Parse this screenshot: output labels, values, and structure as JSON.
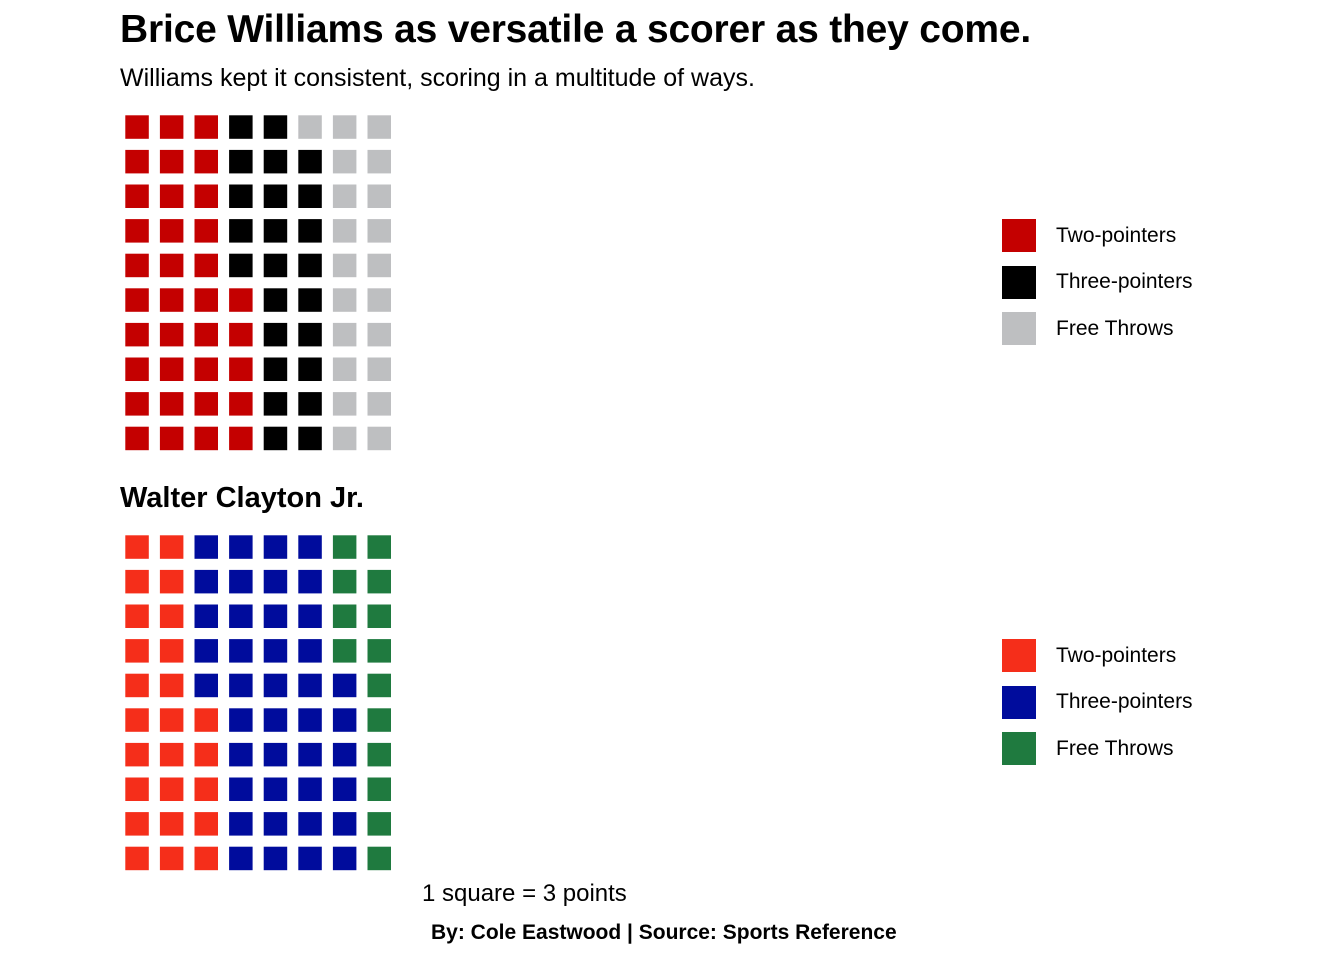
{
  "title": "Brice Williams as versatile a scorer as they come.",
  "subtitle": "Williams kept it consistent, scoring in a multitude of ways.",
  "panel2_title": "Walter Clayton Jr.",
  "caption": "1 square = 3 points",
  "credit": "By: Cole Eastwood | Source: Sports Reference",
  "chart_data": [
    {
      "type": "waffle",
      "title": "",
      "unit": "1 square = 3 points",
      "rows": 10,
      "legend_position": "right",
      "categories": [
        "Two-pointers",
        "Three-pointers",
        "Free Throws"
      ],
      "values": [
        104,
        73,
        63
      ],
      "colors": [
        "#C40000",
        "#000000",
        "#BEBFC1"
      ]
    },
    {
      "type": "waffle",
      "title": "Walter Clayton Jr.",
      "unit": "1 square = 3 points",
      "rows": 10,
      "legend_position": "right",
      "categories": [
        "Two-pointers",
        "Three-pointers",
        "Free Throws"
      ],
      "values": [
        74,
        124,
        42
      ],
      "colors": [
        "#F52E1A",
        "#000C9C",
        "#1F7A3F"
      ]
    }
  ]
}
